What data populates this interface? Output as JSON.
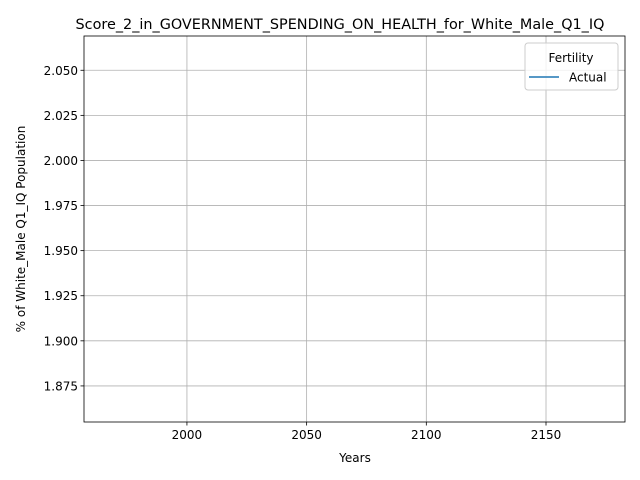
{
  "chart_data": {
    "type": "line",
    "title": "Score_2_in_GOVERNMENT_SPENDING_ON_HEALTH_for_White_Male_Q1_IQ",
    "xlabel": "Years",
    "ylabel": "% of White_Male Q1_IQ Population",
    "xlim": [
      1957,
      2183
    ],
    "ylim": [
      1.855,
      2.069
    ],
    "x_ticks": [
      2000,
      2050,
      2100,
      2150
    ],
    "y_ticks": [
      1.875,
      1.9,
      1.925,
      1.95,
      1.975,
      2.0,
      2.025,
      2.05
    ],
    "grid": true,
    "legend": {
      "title": "Fertility",
      "placement": "top-right",
      "entries": [
        {
          "name": "Actual",
          "color": "#1f77b4"
        }
      ]
    },
    "series": [
      {
        "name": "Actual",
        "color": "#1f77b4",
        "x": [],
        "y": []
      }
    ]
  }
}
